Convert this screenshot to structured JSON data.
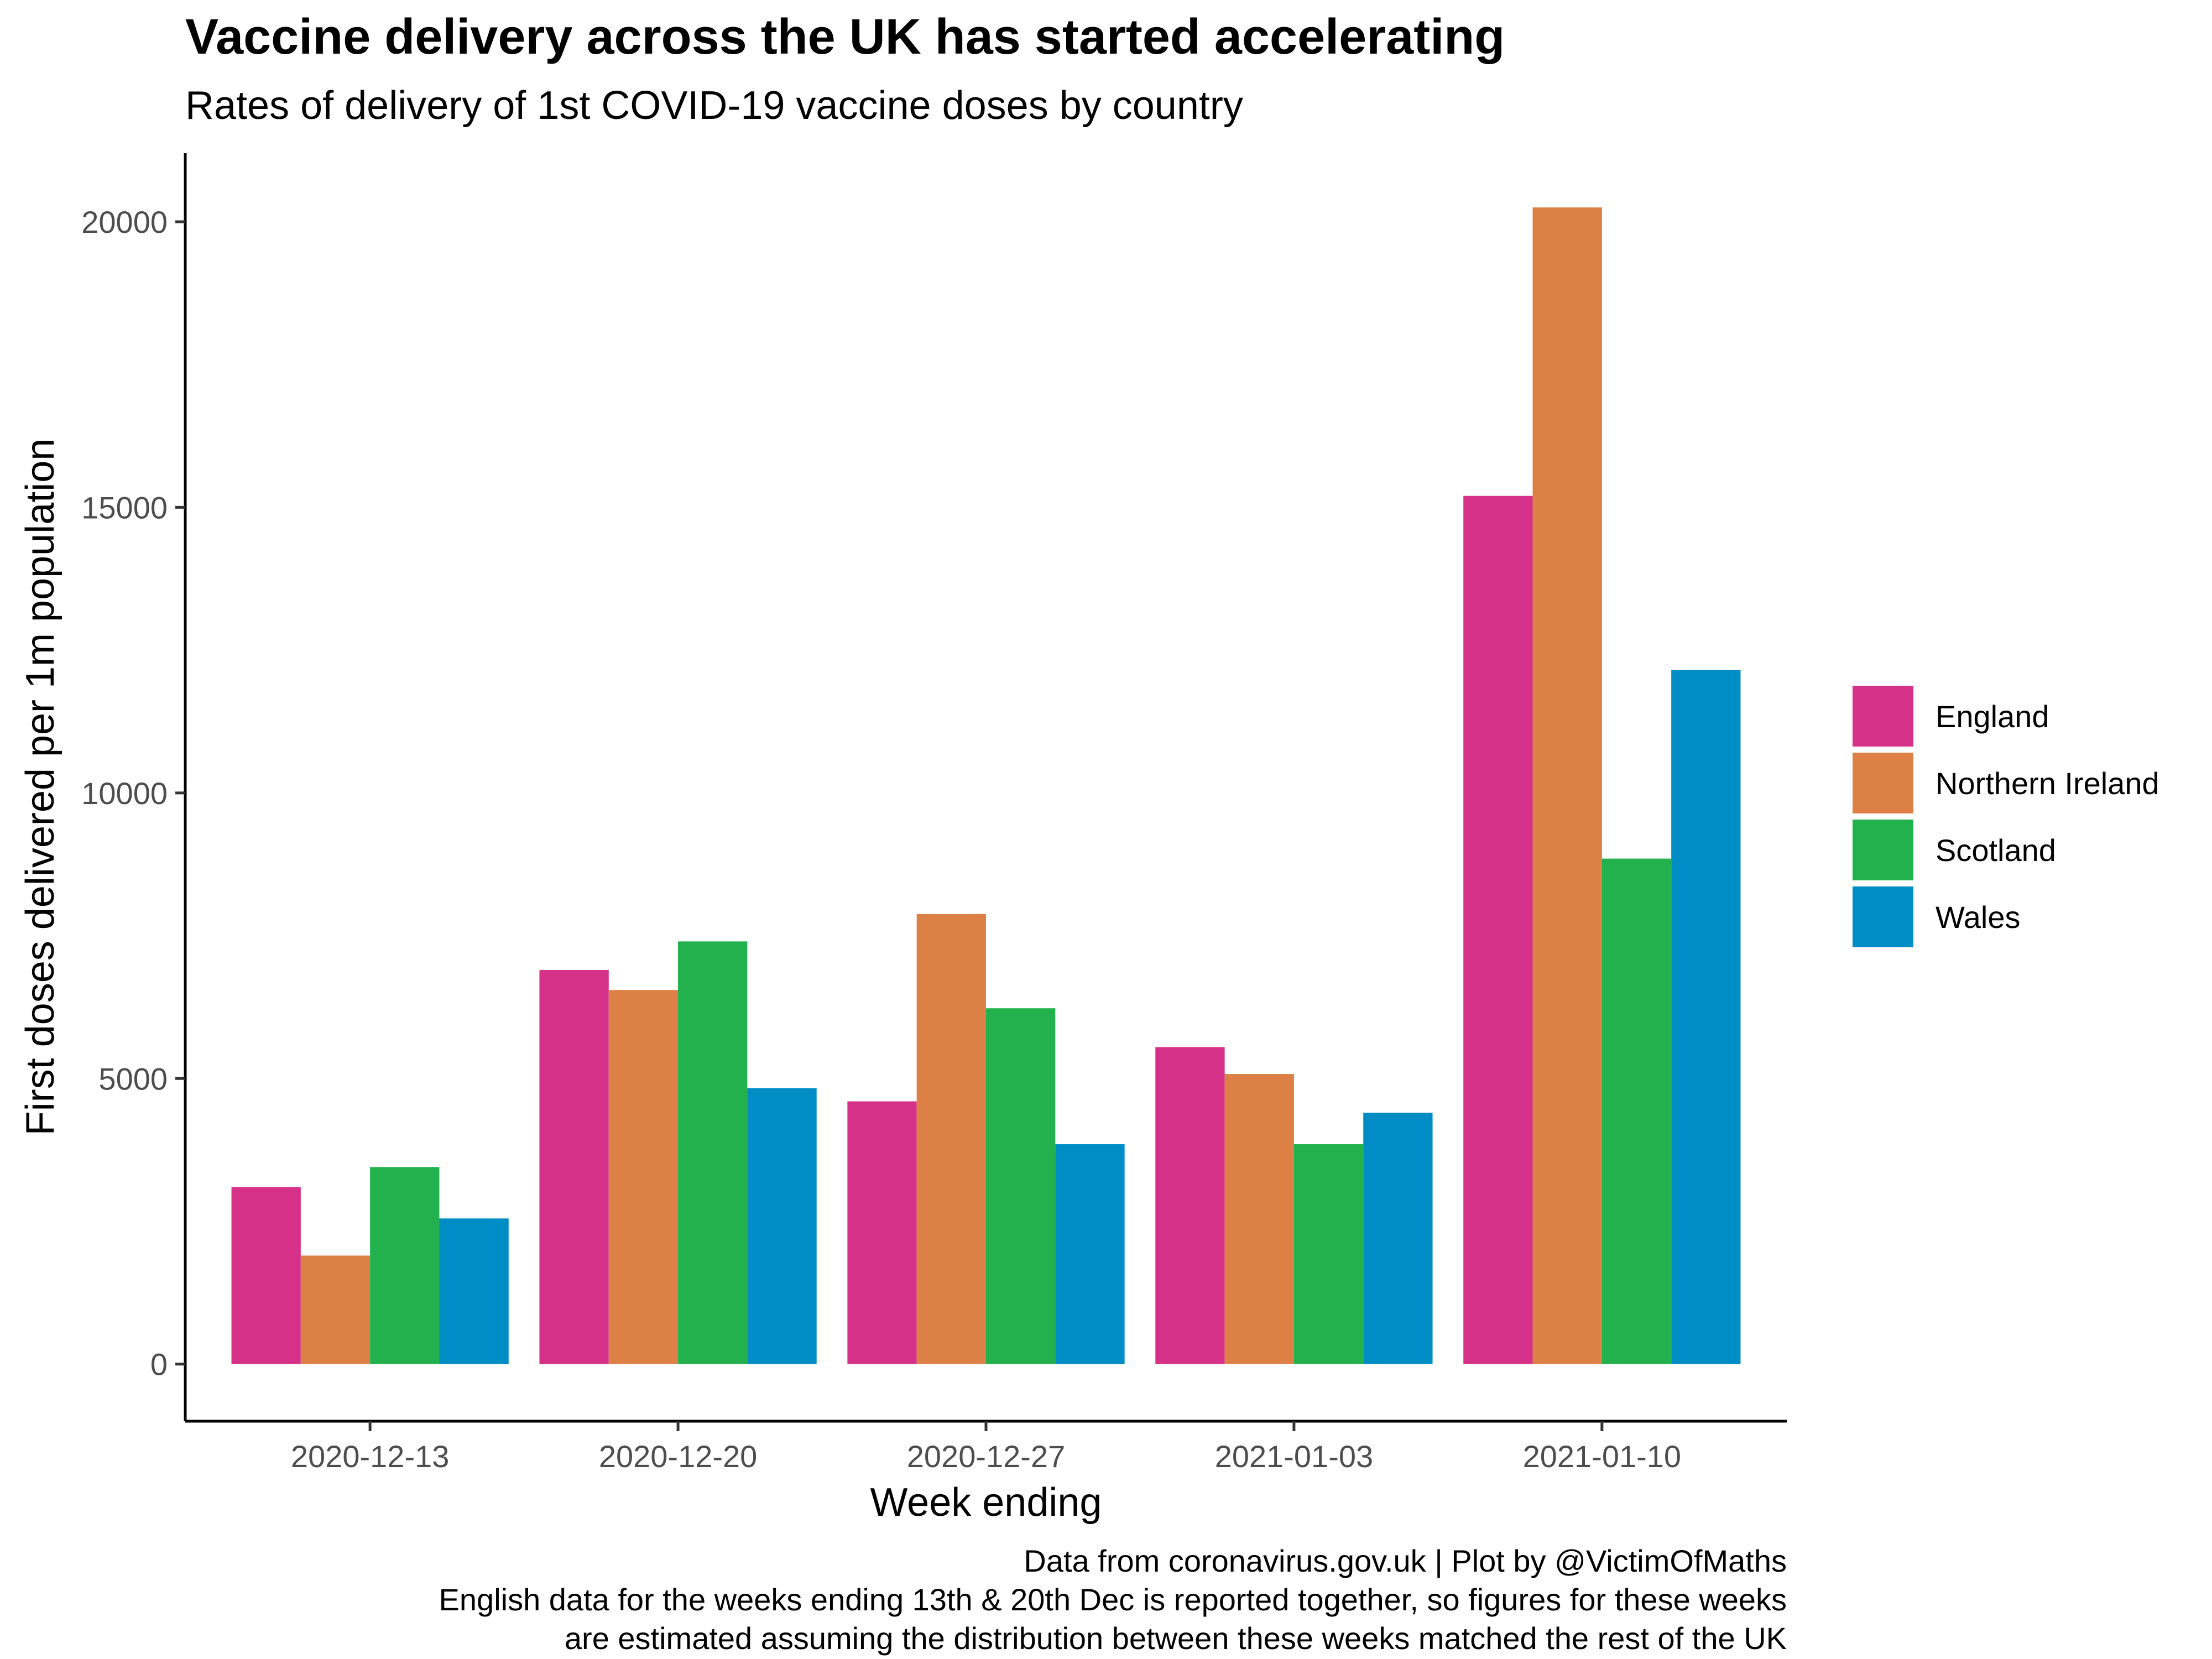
{
  "chart_data": {
    "type": "bar",
    "title": "Vaccine delivery across the UK has started accelerating",
    "subtitle": "Rates of delivery of 1st COVID-19 vaccine doses by country",
    "xlabel": "Week ending",
    "ylabel": "First doses delivered per 1m population",
    "categories": [
      "2020-12-13",
      "2020-12-20",
      "2020-12-27",
      "2021-01-03",
      "2021-01-10"
    ],
    "ylim": [
      -1000,
      21200
    ],
    "yticks": [
      0,
      5000,
      10000,
      15000,
      20000
    ],
    "ytick_labels": [
      "0",
      "5000",
      "10000",
      "15000",
      "20000"
    ],
    "grid": false,
    "legend_position": "right",
    "series": [
      {
        "name": "England",
        "color": "#d63188",
        "values": [
          3100,
          6900,
          4600,
          5550,
          15200
        ]
      },
      {
        "name": "Northern Ireland",
        "color": "#dc8046",
        "values": [
          1900,
          6550,
          7880,
          5080,
          20250
        ]
      },
      {
        "name": "Scotland",
        "color": "#22b14c",
        "values": [
          3450,
          7400,
          6230,
          3850,
          8850
        ]
      },
      {
        "name": "Wales",
        "color": "#008cc4",
        "values": [
          2550,
          4830,
          3850,
          4400,
          12150
        ]
      }
    ],
    "caption": [
      "Data from coronavirus.gov.uk | Plot by @VictimOfMaths",
      "English data for the weeks ending 13th & 20th Dec is reported together, so figures for these weeks",
      "are estimated assuming the distribution between these weeks matched the rest of the UK"
    ]
  }
}
